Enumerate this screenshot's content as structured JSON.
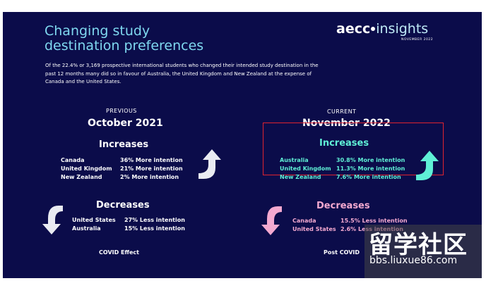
{
  "title": {
    "line1": "Changing study",
    "line2": "destination preferences"
  },
  "logo": {
    "part1": "aecc",
    "part2": "insights",
    "date": "NOVEMBER 2022"
  },
  "description": "Of the 22.4% or 3,169 prospective international students who changed their intended study destination in the past 12 months many did so in favour of Australia, the United Kingdom and New Zealand at the expense of Canada and the United States.",
  "previous": {
    "label": "PREVIOUS",
    "period": "October 2021",
    "increases": {
      "heading": "Increases",
      "rows": [
        {
          "country": "Canada",
          "value": "36% More intention"
        },
        {
          "country": "United Kingdom",
          "value": "21% More intention"
        },
        {
          "country": "New Zealand",
          "value": "2% More intention"
        }
      ]
    },
    "decreases": {
      "heading": "Decreases",
      "rows": [
        {
          "country": "United States",
          "value": "27% Less intention"
        },
        {
          "country": "Australia",
          "value": "15% Less intention"
        }
      ]
    },
    "footer": "COVID Effect"
  },
  "current": {
    "label": "CURRENT",
    "period": "November 2022",
    "increases": {
      "heading": "Increases",
      "rows": [
        {
          "country": "Australia",
          "value": "30.8% More intention"
        },
        {
          "country": "United Kingdom",
          "value": "11.3% More intention"
        },
        {
          "country": "New Zealand",
          "value": "7.6% More intention"
        }
      ]
    },
    "decreases": {
      "heading": "Decreases",
      "rows": [
        {
          "country": "Canada",
          "value": "15.5% Less intention"
        },
        {
          "country": "United States",
          "value": "2.6% Less intention"
        }
      ]
    },
    "footer": "Post COVID"
  },
  "watermark": {
    "text": "留学社区",
    "url": "bbs.liuxue86.com"
  },
  "colors": {
    "background": "#0b0c4a",
    "title": "#7fd8f0",
    "current_increase": "#5ff0d6",
    "current_decrease": "#f4a9d0",
    "previous_accent": "#ffffff",
    "highlight_box": "#e0232f"
  }
}
